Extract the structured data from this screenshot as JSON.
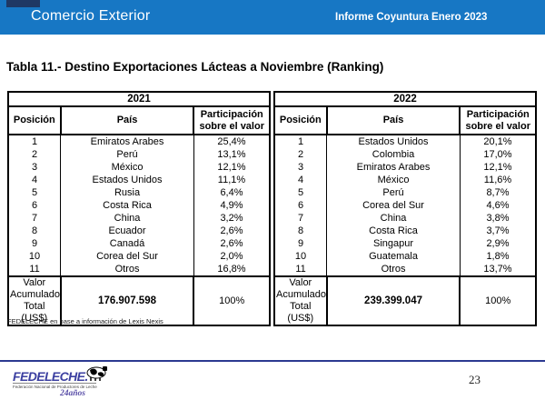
{
  "header": {
    "left_title": "Comercio Exterior",
    "right_title": "Informe Coyuntura Enero 2023",
    "bar_color": "#1777C4",
    "accent_color": "#1F3864"
  },
  "title": "Tabla 11.- Destino Exportaciones Lácteas a Noviembre (Ranking)",
  "table": {
    "columns": [
      "Posición",
      "País",
      "Participación sobre el valor"
    ],
    "groups": [
      {
        "year": "2021",
        "rows": [
          {
            "pos": "1",
            "country": "Emiratos Arabes",
            "share": "25,4%"
          },
          {
            "pos": "2",
            "country": "Perú",
            "share": "13,1%"
          },
          {
            "pos": "3",
            "country": "México",
            "share": "12,1%"
          },
          {
            "pos": "4",
            "country": "Estados Unidos",
            "share": "11,1%"
          },
          {
            "pos": "5",
            "country": "Rusia",
            "share": "6,4%"
          },
          {
            "pos": "6",
            "country": "Costa Rica",
            "share": "4,9%"
          },
          {
            "pos": "7",
            "country": "China",
            "share": "3,2%"
          },
          {
            "pos": "8",
            "country": "Ecuador",
            "share": "2,6%"
          },
          {
            "pos": "9",
            "country": "Canadá",
            "share": "2,6%"
          },
          {
            "pos": "10",
            "country": "Corea del Sur",
            "share": "2,0%"
          },
          {
            "pos": "11",
            "country": "Otros",
            "share": "16,8%"
          }
        ],
        "total_label": "Valor Acumulado Total (US$)",
        "total_value": "176.907.598",
        "total_share": "100%"
      },
      {
        "year": "2022",
        "rows": [
          {
            "pos": "1",
            "country": "Estados Unidos",
            "share": "20,1%"
          },
          {
            "pos": "2",
            "country": "Colombia",
            "share": "17,0%"
          },
          {
            "pos": "3",
            "country": "Emiratos Arabes",
            "share": "12,1%"
          },
          {
            "pos": "4",
            "country": "México",
            "share": "11,6%"
          },
          {
            "pos": "5",
            "country": "Perú",
            "share": "8,7%"
          },
          {
            "pos": "6",
            "country": "Corea del Sur",
            "share": "4,6%"
          },
          {
            "pos": "7",
            "country": "China",
            "share": "3,8%"
          },
          {
            "pos": "8",
            "country": "Costa Rica",
            "share": "3,7%"
          },
          {
            "pos": "9",
            "country": "Singapur",
            "share": "2,9%"
          },
          {
            "pos": "10",
            "country": "Guatemala",
            "share": "1,8%"
          },
          {
            "pos": "11",
            "country": "Otros",
            "share": "13,7%"
          }
        ],
        "total_label": "Valor Acumulado Total (US$)",
        "total_value": "239.399.047",
        "total_share": "100%"
      }
    ]
  },
  "footnote": "FEDELECHE en base a información de Lexis Nexis",
  "footer": {
    "logo_text": "FEDELECHE.",
    "logo_tagline": "Federación Nacional de Productores de Leche",
    "logo_anniversary": "24años",
    "logo_color": "#3B3FA0",
    "anniversary_color": "#5A4FA8",
    "rule_color": "#2B3990",
    "page_number": "23"
  }
}
